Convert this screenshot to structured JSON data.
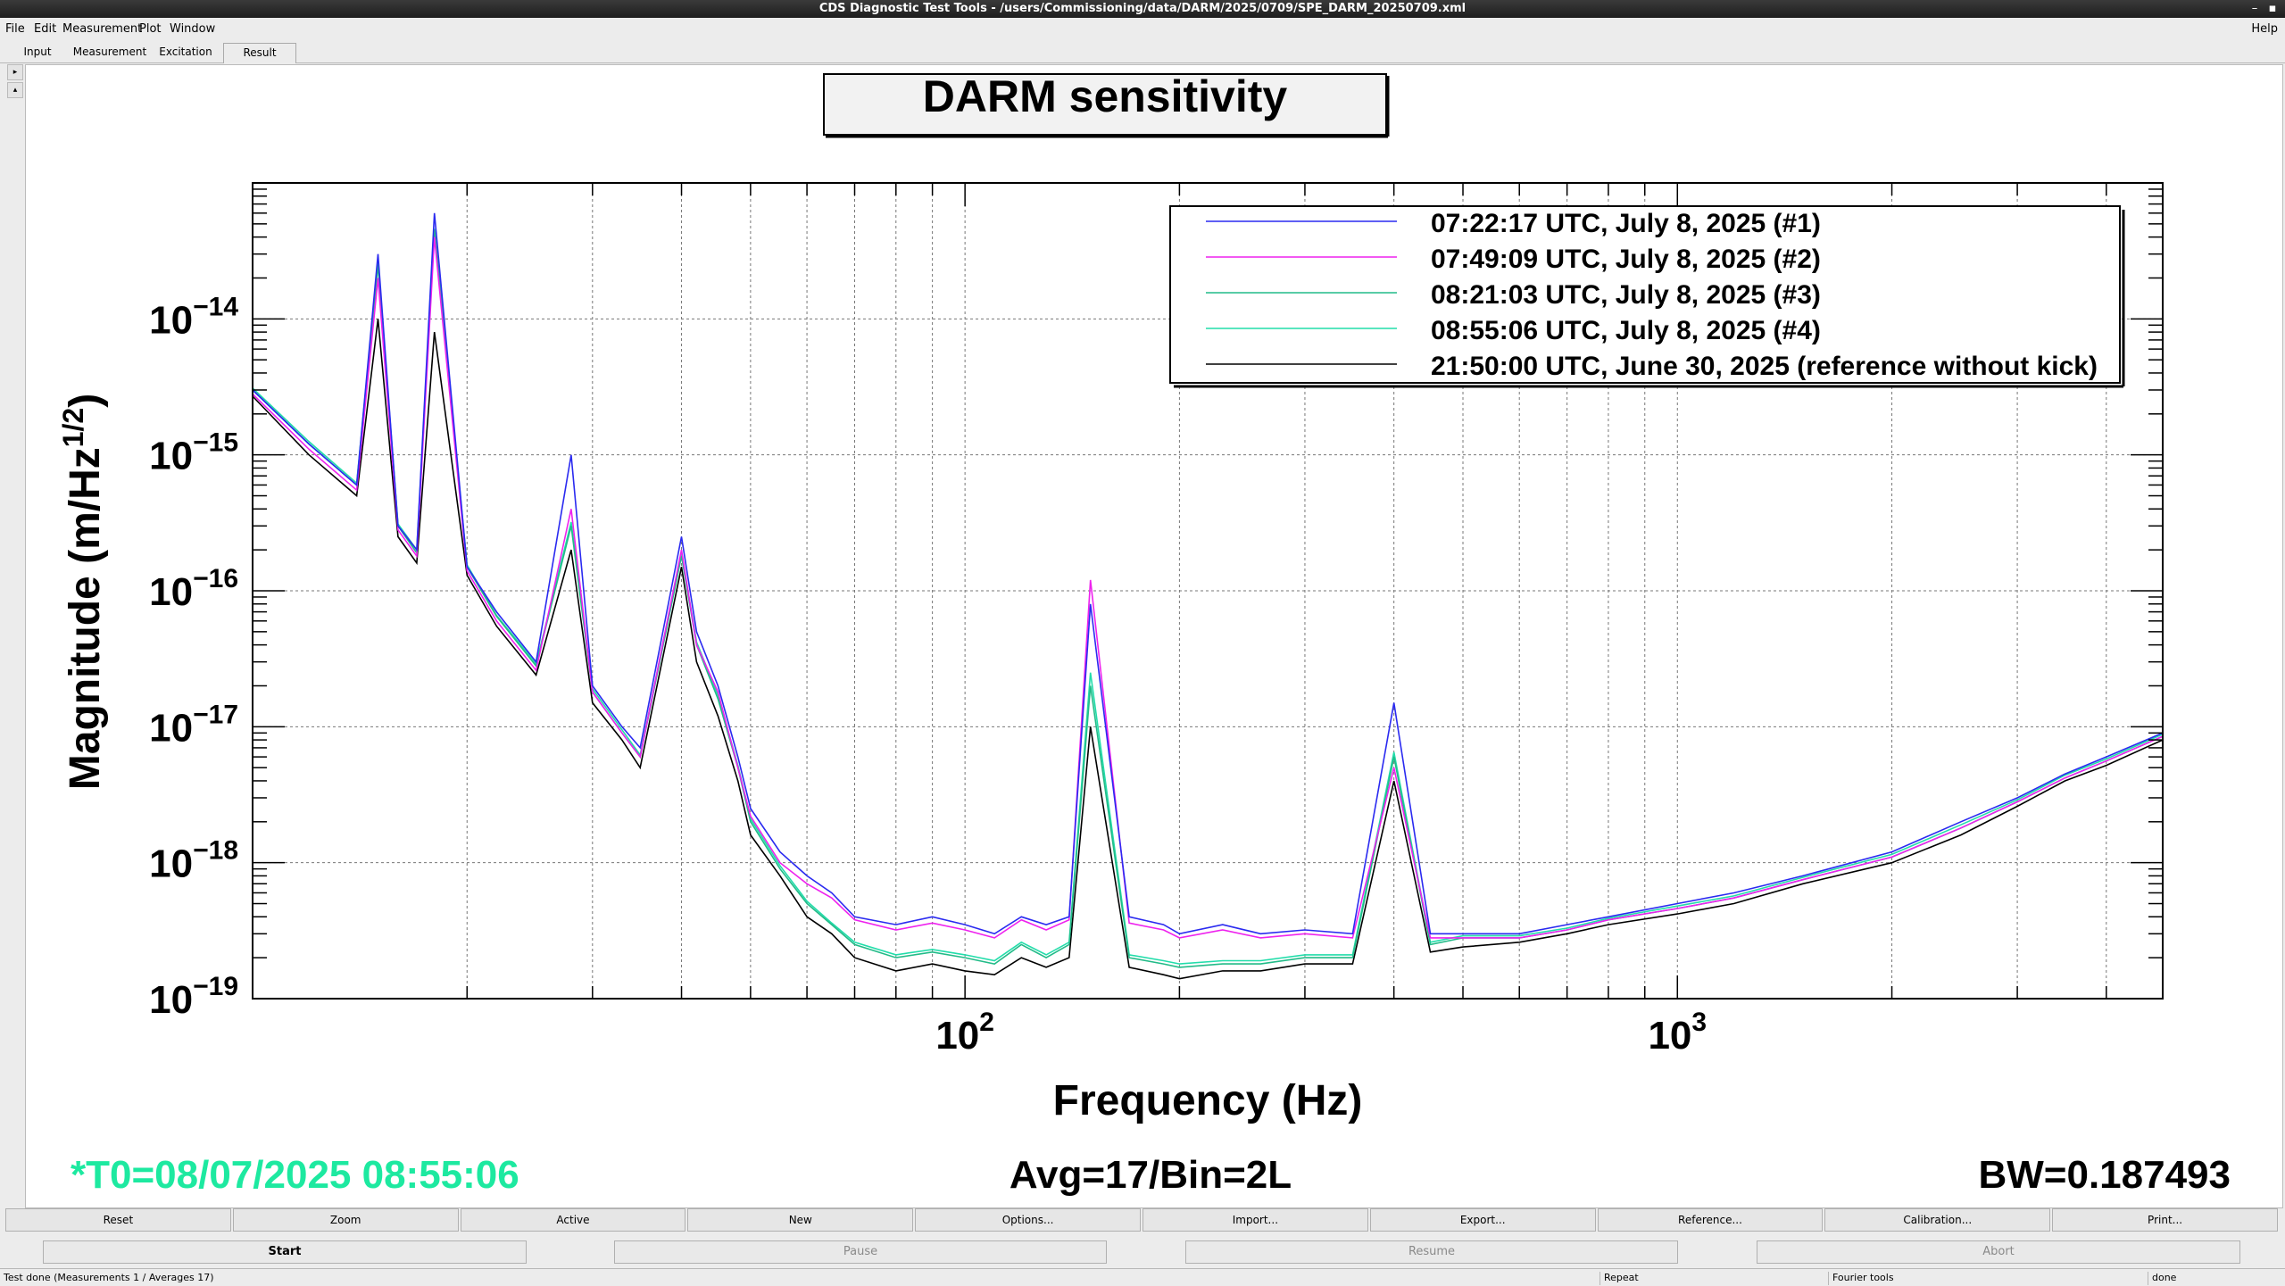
{
  "window": {
    "title": "CDS Diagnostic Test Tools - /users/Commissioning/data/DARM/2025/0709/SPE_DARM_20250709.xml"
  },
  "menu": {
    "items": [
      "File",
      "Edit",
      "Measurement",
      "Plot",
      "Window"
    ],
    "help": "Help"
  },
  "tabs": [
    "Input",
    "Measurement",
    "Excitation",
    "Result"
  ],
  "selected_tab": "Result",
  "plot": {
    "footer_t0": "*T0=08/07/2025 08:55:06",
    "footer_avg": "Avg=17/Bin=2L",
    "footer_bw": "BW=0.187493",
    "t0_color": "#1de9a0"
  },
  "chart_data": {
    "type": "line",
    "title": "DARM sensitivity",
    "xlabel": "Frequency (Hz)",
    "ylabel": "Magnitude (m/Hz^1/2)",
    "x_scale": "log",
    "y_scale": "log",
    "xlim": [
      10,
      4800
    ],
    "ylim": [
      1e-19,
      1e-13
    ],
    "x_tick_labels": [
      {
        "base": "10",
        "exp": "2"
      },
      {
        "base": "10",
        "exp": "3"
      }
    ],
    "y_tick_labels": [
      {
        "base": "10",
        "exp": "−14"
      },
      {
        "base": "10",
        "exp": "−15"
      },
      {
        "base": "10",
        "exp": "−16"
      },
      {
        "base": "10",
        "exp": "−17"
      },
      {
        "base": "10",
        "exp": "−18"
      },
      {
        "base": "10",
        "exp": "−19"
      }
    ],
    "grid": true,
    "legend_position": "top-right",
    "series": [
      {
        "name": "07:22:17 UTC, July 8, 2025 (#1)",
        "color": "#2a2af0",
        "x": [
          10,
          12,
          14,
          15,
          16,
          17,
          18,
          20,
          22,
          25,
          28,
          30,
          33,
          35,
          40,
          42,
          45,
          48,
          50,
          55,
          60,
          65,
          70,
          80,
          90,
          100,
          110,
          120,
          130,
          140,
          150,
          170,
          190,
          200,
          230,
          260,
          300,
          350,
          400,
          450,
          500,
          600,
          700,
          800,
          1000,
          1200,
          1500,
          2000,
          2500,
          3000,
          3500,
          4000,
          4800
        ],
        "y": [
          3e-15,
          1.2e-15,
          6e-16,
          3e-14,
          3e-16,
          2e-16,
          6e-14,
          1.5e-16,
          7e-17,
          3e-17,
          1e-15,
          2e-17,
          1e-17,
          7e-18,
          2.5e-16,
          5e-17,
          2e-17,
          6e-18,
          2.5e-18,
          1.2e-18,
          8e-19,
          6e-19,
          4e-19,
          3.5e-19,
          4e-19,
          3.5e-19,
          3e-19,
          4e-19,
          3.5e-19,
          4e-19,
          8e-17,
          4e-19,
          3.5e-19,
          3e-19,
          3.5e-19,
          3e-19,
          3.2e-19,
          3e-19,
          1.5e-17,
          3e-19,
          3e-19,
          3e-19,
          3.5e-19,
          4e-19,
          5e-19,
          6e-19,
          8e-19,
          1.2e-18,
          2e-18,
          3e-18,
          4.5e-18,
          6e-18,
          9e-18
        ]
      },
      {
        "name": "07:49:09 UTC, July 8, 2025 (#2)",
        "color": "#ee22ee",
        "x": [
          10,
          12,
          14,
          15,
          16,
          17,
          18,
          20,
          22,
          25,
          28,
          30,
          33,
          35,
          40,
          42,
          45,
          48,
          50,
          55,
          60,
          65,
          70,
          80,
          90,
          100,
          110,
          120,
          130,
          140,
          150,
          170,
          190,
          200,
          230,
          260,
          300,
          350,
          400,
          450,
          500,
          600,
          700,
          800,
          1000,
          1200,
          1500,
          2000,
          2500,
          3000,
          3500,
          4000,
          4800
        ],
        "y": [
          2.8e-15,
          1.1e-15,
          5.5e-16,
          2e-14,
          2.8e-16,
          1.8e-16,
          4e-14,
          1.4e-16,
          6e-17,
          2.6e-17,
          4e-16,
          1.8e-17,
          9e-18,
          6e-18,
          2e-16,
          4e-17,
          1.8e-17,
          5e-18,
          2.2e-18,
          1e-18,
          7e-19,
          5.5e-19,
          3.8e-19,
          3.2e-19,
          3.6e-19,
          3.2e-19,
          2.8e-19,
          3.8e-19,
          3.2e-19,
          3.8e-19,
          1.2e-16,
          3.6e-19,
          3.2e-19,
          2.8e-19,
          3.2e-19,
          2.8e-19,
          3e-19,
          2.8e-19,
          5e-18,
          2.8e-19,
          2.8e-19,
          2.8e-19,
          3.2e-19,
          3.8e-19,
          4.6e-19,
          5.5e-19,
          7.5e-19,
          1.1e-18,
          1.8e-18,
          2.8e-18,
          4.2e-18,
          5.6e-18,
          8.5e-18
        ]
      },
      {
        "name": "08:21:03 UTC, July 8, 2025 (#3)",
        "color": "#22bb88",
        "x": [
          10,
          12,
          14,
          15,
          16,
          17,
          18,
          20,
          22,
          25,
          28,
          30,
          33,
          35,
          40,
          42,
          45,
          48,
          50,
          55,
          60,
          65,
          70,
          80,
          90,
          100,
          110,
          120,
          130,
          140,
          150,
          170,
          190,
          200,
          230,
          260,
          300,
          350,
          400,
          450,
          500,
          600,
          700,
          800,
          1000,
          1200,
          1500,
          2000,
          2500,
          3000,
          3500,
          4000,
          4800
        ],
        "y": [
          3e-15,
          1.2e-15,
          6e-16,
          2.5e-14,
          3e-16,
          1.9e-16,
          4.5e-14,
          1.5e-16,
          6.5e-17,
          2.8e-17,
          3e-16,
          1.8e-17,
          9e-18,
          6e-18,
          1.8e-16,
          4e-17,
          1.6e-17,
          5e-18,
          2e-18,
          9e-19,
          5e-19,
          3.5e-19,
          2.5e-19,
          2e-19,
          2.2e-19,
          2e-19,
          1.8e-19,
          2.5e-19,
          2e-19,
          2.5e-19,
          2e-17,
          2e-19,
          1.8e-19,
          1.7e-19,
          1.8e-19,
          1.8e-19,
          2e-19,
          2e-19,
          6e-18,
          2.5e-19,
          2.8e-19,
          2.8e-19,
          3.2e-19,
          3.8e-19,
          4.6e-19,
          5.5e-19,
          7.5e-19,
          1.1e-18,
          1.8e-18,
          2.8e-18,
          4.2e-18,
          5.6e-18,
          8.5e-18
        ]
      },
      {
        "name": "08:55:06 UTC, July 8, 2025 (#4)",
        "color": "#22ddaa",
        "x": [
          10,
          12,
          14,
          15,
          16,
          17,
          18,
          20,
          22,
          25,
          28,
          30,
          33,
          35,
          40,
          42,
          45,
          48,
          50,
          55,
          60,
          65,
          70,
          80,
          90,
          100,
          110,
          120,
          130,
          140,
          150,
          170,
          190,
          200,
          230,
          260,
          300,
          350,
          400,
          450,
          500,
          600,
          700,
          800,
          1000,
          1200,
          1500,
          2000,
          2500,
          3000,
          3500,
          4000,
          4800
        ],
        "y": [
          3.1e-15,
          1.25e-15,
          6.2e-16,
          2.6e-14,
          3.1e-16,
          2e-16,
          4.6e-14,
          1.55e-16,
          6.6e-17,
          2.9e-17,
          3.2e-16,
          1.9e-17,
          9.5e-18,
          6.2e-18,
          1.9e-16,
          4.2e-17,
          1.7e-17,
          5.2e-18,
          2.1e-18,
          9.5e-19,
          5.2e-19,
          3.6e-19,
          2.6e-19,
          2.1e-19,
          2.3e-19,
          2.1e-19,
          1.9e-19,
          2.6e-19,
          2.1e-19,
          2.6e-19,
          2.5e-17,
          2.1e-19,
          1.9e-19,
          1.8e-19,
          1.9e-19,
          1.9e-19,
          2.1e-19,
          2.1e-19,
          6.5e-18,
          2.6e-19,
          2.9e-19,
          2.9e-19,
          3.3e-19,
          3.9e-19,
          4.8e-19,
          5.7e-19,
          7.8e-19,
          1.15e-18,
          1.9e-18,
          2.9e-18,
          4.4e-18,
          5.8e-18,
          8.8e-18
        ]
      },
      {
        "name": "21:50:00 UTC, June 30, 2025 (reference without kick)",
        "color": "#000000",
        "x": [
          10,
          12,
          14,
          15,
          16,
          17,
          18,
          20,
          22,
          25,
          28,
          30,
          33,
          35,
          40,
          42,
          45,
          48,
          50,
          55,
          60,
          65,
          70,
          80,
          90,
          100,
          110,
          120,
          130,
          140,
          150,
          170,
          190,
          200,
          230,
          260,
          300,
          350,
          400,
          450,
          500,
          600,
          700,
          800,
          1000,
          1200,
          1500,
          2000,
          2500,
          3000,
          3500,
          4000,
          4800
        ],
        "y": [
          2.7e-15,
          1e-15,
          5e-16,
          1e-14,
          2.5e-16,
          1.6e-16,
          8e-15,
          1.3e-16,
          5.5e-17,
          2.4e-17,
          2e-16,
          1.5e-17,
          8e-18,
          5e-18,
          1.5e-16,
          3e-17,
          1.2e-17,
          4e-18,
          1.6e-18,
          8e-19,
          4e-19,
          3e-19,
          2e-19,
          1.6e-19,
          1.8e-19,
          1.6e-19,
          1.5e-19,
          2e-19,
          1.7e-19,
          2e-19,
          1e-17,
          1.7e-19,
          1.5e-19,
          1.4e-19,
          1.6e-19,
          1.6e-19,
          1.8e-19,
          1.8e-19,
          4e-18,
          2.2e-19,
          2.4e-19,
          2.6e-19,
          3e-19,
          3.5e-19,
          4.2e-19,
          5e-19,
          7e-19,
          1e-18,
          1.6e-18,
          2.6e-18,
          4e-18,
          5.2e-18,
          8e-18
        ]
      }
    ]
  },
  "buttons_row1": [
    "Reset",
    "Zoom",
    "Active",
    "New",
    "Options...",
    "Import...",
    "Export...",
    "Reference...",
    "Calibration...",
    "Print..."
  ],
  "buttons_row2": [
    {
      "label": "Start",
      "enabled": true
    },
    {
      "label": "Pause",
      "enabled": false
    },
    {
      "label": "Resume",
      "enabled": false
    },
    {
      "label": "Abort",
      "enabled": false
    }
  ],
  "statusbar": {
    "message": "Test done (Measurements 1 / Averages 17)",
    "repeat": "Repeat",
    "tools": "Fourier tools",
    "state": "done"
  }
}
